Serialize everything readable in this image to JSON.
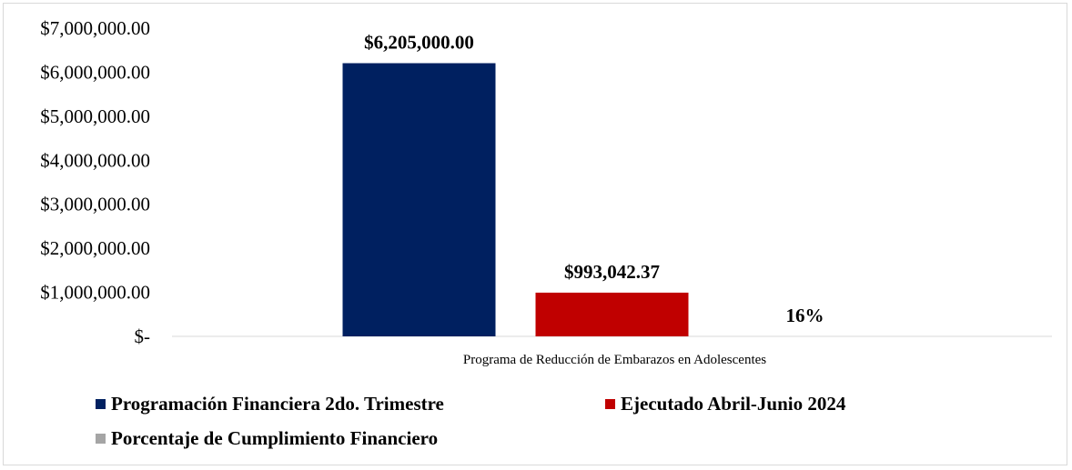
{
  "chart_data": {
    "type": "bar",
    "categories": [
      "Programa de Reducción de Embarazos en Adolescentes"
    ],
    "series": [
      {
        "name": "Programación Financiera 2do. Trimestre",
        "values": [
          6205000.0
        ],
        "label": "$6,205,000.00",
        "color": "#002060"
      },
      {
        "name": "Ejecutado Abril-Junio 2024",
        "values": [
          993042.37
        ],
        "label": "$993,042.37",
        "color": "#C00000"
      },
      {
        "name": "Porcentaje de Cumplimiento Financiero",
        "values": [
          0.16
        ],
        "label": "16%",
        "color": "#A5A5A5"
      }
    ],
    "ylim": [
      0,
      7000000
    ],
    "yticks": [
      0,
      1000000,
      2000000,
      3000000,
      4000000,
      5000000,
      6000000,
      7000000
    ],
    "ytick_labels": [
      "$-",
      "$1,000,000.00",
      "$2,000,000.00",
      "$3,000,000.00",
      "$4,000,000.00",
      "$5,000,000.00",
      "$6,000,000.00",
      "$7,000,000.00"
    ],
    "grid": false,
    "legend_position": "bottom"
  }
}
